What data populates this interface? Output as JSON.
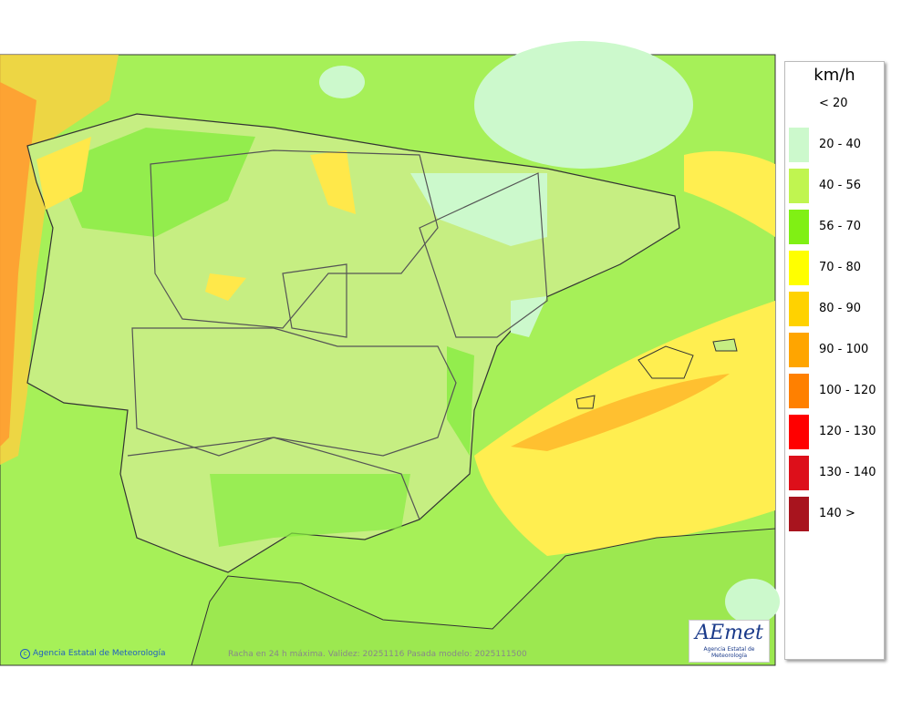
{
  "legend": {
    "unit": "km/h",
    "items": [
      {
        "label": "< 20",
        "color": null
      },
      {
        "label": "20 - 40",
        "color": "#ccf9cc"
      },
      {
        "label": "40 - 56",
        "color": "#c0f550"
      },
      {
        "label": "56 - 70",
        "color": "#80f014"
      },
      {
        "label": "70 - 80",
        "color": "#ffff00"
      },
      {
        "label": "80 - 90",
        "color": "#ffd200"
      },
      {
        "label": "90 - 100",
        "color": "#ffa500"
      },
      {
        "label": "100 - 120",
        "color": "#ff8000"
      },
      {
        "label": "120 - 130",
        "color": "#ff0000"
      },
      {
        "label": "130 - 140",
        "color": "#dd0f1a"
      },
      {
        "label": "140 >",
        "color": "#a8141e"
      }
    ]
  },
  "footer": {
    "credit": "Agencia Estatal de Meteorología",
    "caption": "Racha en 24 h máxima. Validez: 20251116 Pasada modelo: 2025111500"
  },
  "logo": {
    "name": "AEmet",
    "subtitle": "Agencia Estatal de Meteorología"
  }
}
